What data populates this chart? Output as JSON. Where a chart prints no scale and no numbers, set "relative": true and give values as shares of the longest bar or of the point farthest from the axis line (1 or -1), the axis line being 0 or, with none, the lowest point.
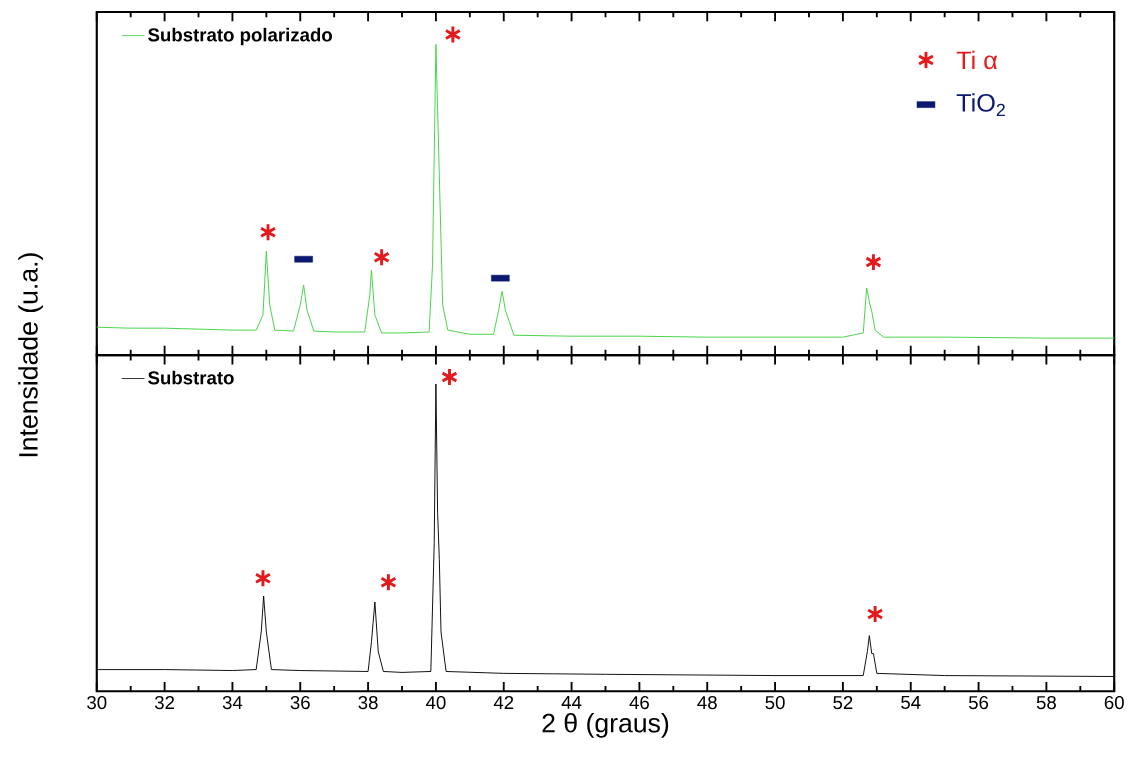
{
  "chart_data": [
    {
      "type": "line",
      "relative": true,
      "ylabel": "Intensidade (u.a.)",
      "xlim": [
        30,
        60
      ],
      "xticks": [
        30,
        32,
        34,
        36,
        38,
        40,
        42,
        44,
        46,
        48,
        50,
        52,
        54,
        56,
        58,
        60
      ],
      "tick_labels": false,
      "legend": "top left",
      "marker": "none",
      "series": [
        {
          "name": "Substrato polarizado",
          "color": "#3fd13f",
          "x": [
            30,
            31,
            32,
            33,
            34,
            34.7,
            34.9,
            35.0,
            35.1,
            35.25,
            35.8,
            36.0,
            36.1,
            36.2,
            36.4,
            37,
            37.9,
            38.05,
            38.1,
            38.2,
            38.4,
            39,
            39.8,
            39.9,
            40.0,
            40.1,
            40.2,
            40.35,
            41,
            41.7,
            41.85,
            41.95,
            42.05,
            42.3,
            44,
            46,
            48,
            50,
            52,
            52.6,
            52.7,
            52.8,
            52.85,
            52.95,
            53.2,
            55,
            58,
            60
          ],
          "values": [
            0.087,
            0.084,
            0.084,
            0.081,
            0.078,
            0.078,
            0.125,
            0.324,
            0.156,
            0.078,
            0.075,
            0.156,
            0.218,
            0.14,
            0.075,
            0.072,
            0.072,
            0.187,
            0.265,
            0.125,
            0.069,
            0.069,
            0.072,
            0.28,
            0.969,
            0.561,
            0.156,
            0.078,
            0.065,
            0.065,
            0.14,
            0.199,
            0.14,
            0.062,
            0.059,
            0.059,
            0.056,
            0.056,
            0.056,
            0.069,
            0.209,
            0.156,
            0.137,
            0.078,
            0.056,
            0.056,
            0.053,
            0.053
          ]
        },
        {
          "type": "scatter",
          "name": "Ti α",
          "color": "#e3191c",
          "marker": "cross",
          "x": [
            35.05,
            38.4,
            40.5,
            52.9
          ],
          "values": [
            0.383,
            0.305,
            1.0,
            0.29
          ]
        },
        {
          "type": "scatter",
          "name": "TiO$_{2}$",
          "color": "#0b1a70",
          "marker": "square",
          "x": [
            36.1,
            41.9
          ],
          "values": [
            0.299,
            0.24
          ]
        }
      ]
    },
    {
      "type": "line",
      "relative": true,
      "xlabel": "2 θ (graus)",
      "xlim": [
        30,
        60
      ],
      "xticks": [
        30,
        32,
        34,
        36,
        38,
        40,
        42,
        44,
        46,
        48,
        50,
        52,
        54,
        56,
        58,
        60
      ],
      "tick_labels": "x",
      "legend": "top left",
      "marker": "none",
      "series": [
        {
          "name": "Substrato",
          "color": "#000000",
          "x": [
            30,
            32,
            34,
            34.7,
            34.85,
            34.92,
            35.0,
            35.15,
            36,
            38,
            38.1,
            38.2,
            38.3,
            38.45,
            39,
            39.85,
            39.95,
            40.0,
            40.05,
            40.1,
            40.15,
            40.3,
            42,
            45,
            50,
            52.6,
            52.72,
            52.78,
            52.85,
            52.9,
            53.0,
            55,
            60
          ],
          "values": [
            0.069,
            0.069,
            0.066,
            0.069,
            0.189,
            0.303,
            0.189,
            0.069,
            0.066,
            0.063,
            0.158,
            0.284,
            0.126,
            0.063,
            0.06,
            0.063,
            0.473,
            0.978,
            0.568,
            0.42,
            0.189,
            0.063,
            0.057,
            0.054,
            0.05,
            0.05,
            0.126,
            0.177,
            0.12,
            0.12,
            0.057,
            0.05,
            0.047
          ]
        },
        {
          "type": "scatter",
          "color": "#e3191c",
          "marker": "cross",
          "x": [
            34.9,
            38.6,
            40.4,
            52.95
          ],
          "values": [
            0.36,
            0.347,
            1.0,
            0.246
          ]
        }
      ]
    }
  ]
}
